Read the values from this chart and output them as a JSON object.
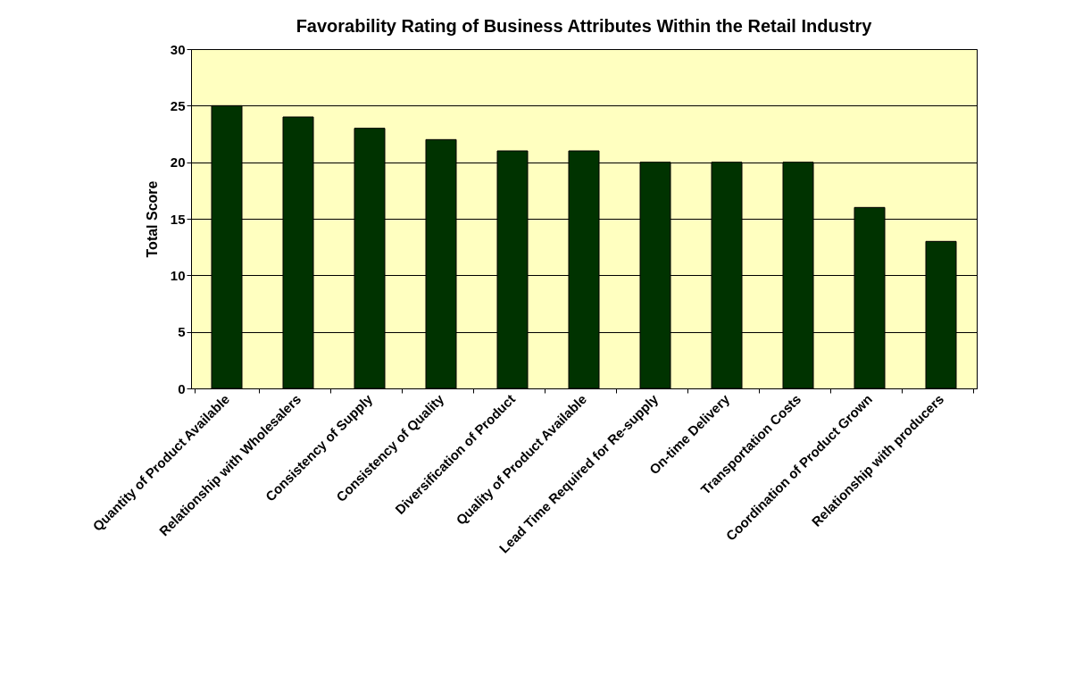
{
  "chart_data": {
    "type": "bar",
    "title": "Favorability Rating of Business Attributes Within the Retail Industry",
    "ylabel": "Total Score",
    "categories": [
      "Quantity of Product Available",
      "Relationship with Wholesalers",
      "Consistency of Supply",
      "Consistency of Quality",
      "Diversification of Product",
      "Quality of Product Available",
      "Lead Time Required for Re-supply",
      "On-time Delivery",
      "Transportation Costs",
      "Coordination of Product Grown",
      "Relationship with producers"
    ],
    "values": [
      25,
      24,
      23,
      22,
      21,
      21,
      20,
      20,
      20,
      16,
      13
    ],
    "color": "#003300",
    "ylim": [
      0,
      30
    ],
    "yticks": [
      0,
      5,
      10,
      15,
      20,
      25,
      30
    ],
    "grid": "y"
  }
}
